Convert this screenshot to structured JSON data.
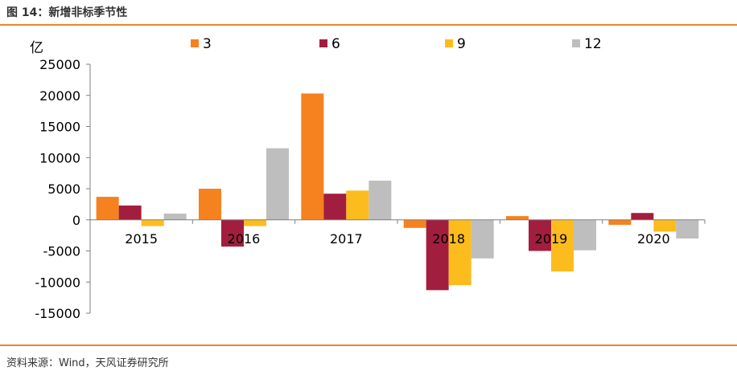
{
  "figure": {
    "title": "图 14：新增非标季节性",
    "source": "资料来源：Wind，天风证券研究所",
    "accent_color": "#E8862A"
  },
  "chart_data": {
    "type": "bar",
    "unit": "亿",
    "categories": [
      "2015",
      "2016",
      "2017",
      "2018",
      "2019",
      "2020"
    ],
    "series": [
      {
        "name": "3",
        "color": "#F5821F",
        "values": [
          3700,
          5000,
          20300,
          -1300,
          600,
          -800
        ]
      },
      {
        "name": "6",
        "color": "#A21E3E",
        "values": [
          2300,
          -4300,
          4200,
          -11300,
          -5000,
          1100
        ]
      },
      {
        "name": "9",
        "color": "#FDBC1D",
        "values": [
          -1000,
          -1000,
          4700,
          -10500,
          -8300,
          -1900
        ]
      },
      {
        "name": "12",
        "color": "#BEBEBE",
        "values": [
          1000,
          11500,
          6300,
          -6200,
          -4900,
          -3000
        ]
      }
    ],
    "yticks": [
      25000,
      20000,
      15000,
      10000,
      5000,
      0,
      -5000,
      -10000,
      -15000
    ],
    "ytick_labels": [
      "25000",
      "20000",
      "15000",
      "10000",
      "5000",
      "0",
      "-5000",
      "-10000",
      "-15000"
    ],
    "ylim": [
      -15000,
      25000
    ],
    "grid": false,
    "legend": "top"
  }
}
